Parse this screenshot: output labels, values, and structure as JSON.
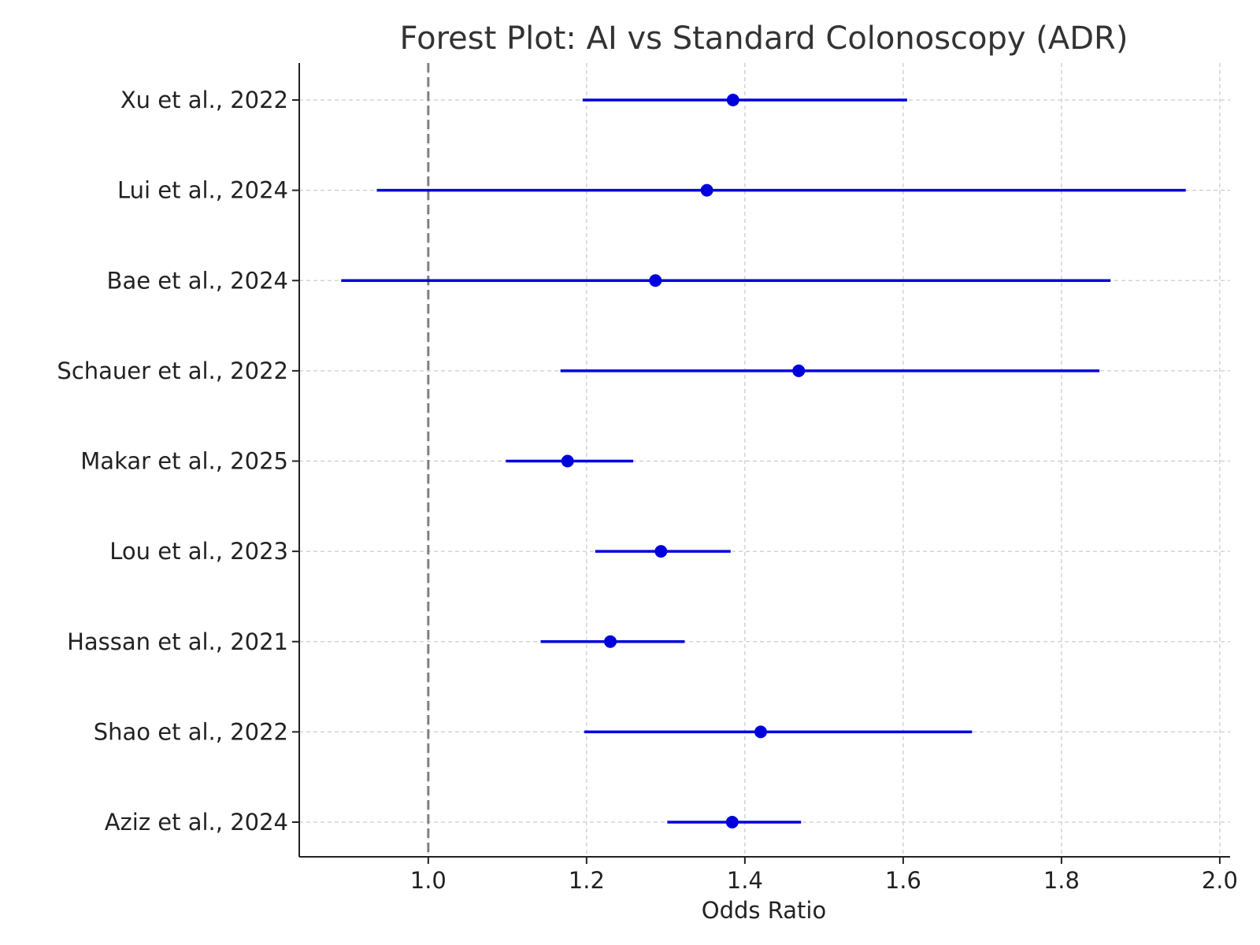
{
  "chart_data": {
    "type": "scatter",
    "subtype": "forest-plot",
    "title": "Forest Plot: AI vs Standard Colonoscopy (ADR)",
    "xlabel": "Odds Ratio",
    "ylabel": "",
    "xlim": [
      0.837,
      2.013
    ],
    "xticks": [
      1.0,
      1.2,
      1.4,
      1.6,
      1.8,
      2.0
    ],
    "xtick_labels": [
      "1.0",
      "1.2",
      "1.4",
      "1.6",
      "1.8",
      "2.0"
    ],
    "reference_line": 1.0,
    "grid": true,
    "color": "#0000dd",
    "reference_color": "#808080",
    "studies": [
      {
        "label": "Xu et al., 2022",
        "or": 1.385,
        "lower": 1.195,
        "upper": 1.605
      },
      {
        "label": "Lui et al., 2024",
        "or": 1.352,
        "lower": 0.935,
        "upper": 1.957
      },
      {
        "label": "Bae et al., 2024",
        "or": 1.287,
        "lower": 0.89,
        "upper": 1.862
      },
      {
        "label": "Schauer et al., 2022",
        "or": 1.468,
        "lower": 1.167,
        "upper": 1.848
      },
      {
        "label": "Makar et al., 2025",
        "or": 1.176,
        "lower": 1.098,
        "upper": 1.259
      },
      {
        "label": "Lou et al., 2023",
        "or": 1.294,
        "lower": 1.211,
        "upper": 1.382
      },
      {
        "label": "Hassan et al., 2021",
        "or": 1.23,
        "lower": 1.142,
        "upper": 1.324
      },
      {
        "label": "Shao et al., 2022",
        "or": 1.42,
        "lower": 1.197,
        "upper": 1.687
      },
      {
        "label": "Aziz et al., 2024",
        "or": 1.384,
        "lower": 1.302,
        "upper": 1.471
      }
    ]
  }
}
